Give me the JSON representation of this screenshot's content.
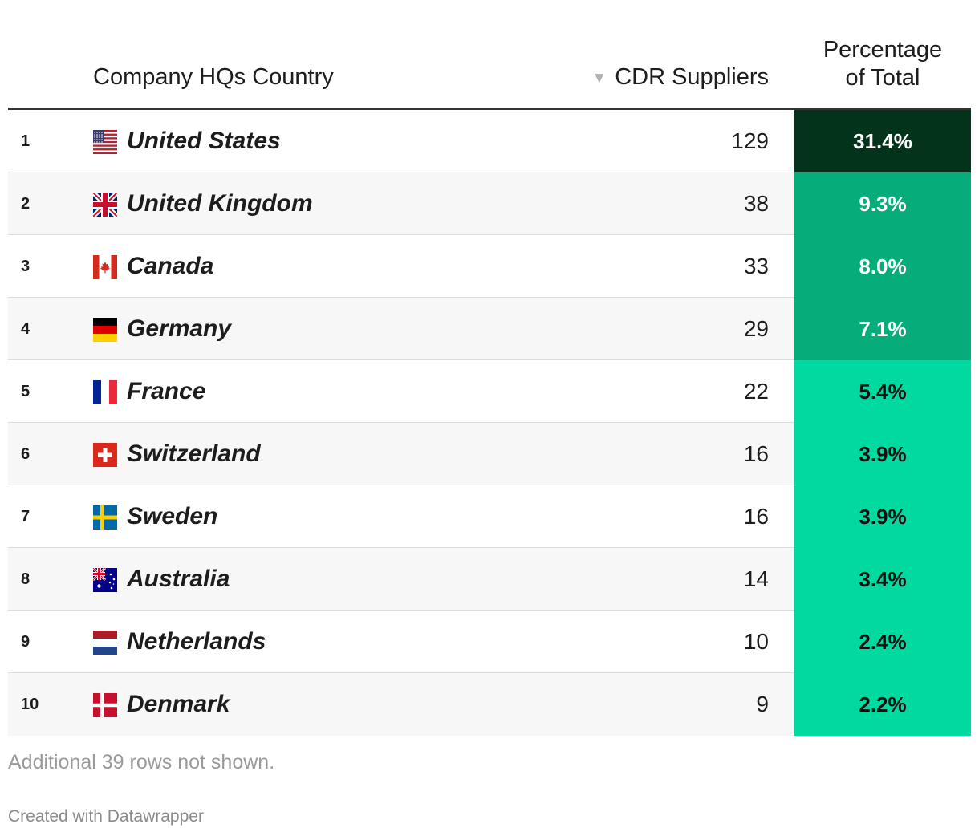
{
  "header": {
    "country_label": "Company HQs Country",
    "suppliers_label": "CDR Suppliers",
    "pct_label_line1": "Percentage",
    "pct_label_line2": "of Total"
  },
  "chart_data": {
    "type": "table",
    "columns": [
      "Company HQs Country",
      "CDR Suppliers",
      "Percentage of Total"
    ],
    "sort": {
      "column": "CDR Suppliers",
      "direction": "descending"
    },
    "rows": [
      {
        "rank": "1",
        "flag": "flag-us-icon",
        "country": "United States",
        "suppliers": "129",
        "percentage": "31.4%",
        "pct_value": 31.4,
        "cell_color": "#03331b",
        "text_color": "#ffffff"
      },
      {
        "rank": "2",
        "flag": "flag-uk-icon",
        "country": "United Kingdom",
        "suppliers": "38",
        "percentage": "9.3%",
        "pct_value": 9.3,
        "cell_color": "#06ad7a",
        "text_color": "#ffffff"
      },
      {
        "rank": "3",
        "flag": "flag-canada-icon",
        "country": "Canada",
        "suppliers": "33",
        "percentage": "8.0%",
        "pct_value": 8.0,
        "cell_color": "#06ad7a",
        "text_color": "#ffffff"
      },
      {
        "rank": "4",
        "flag": "flag-germany-icon",
        "country": "Germany",
        "suppliers": "29",
        "percentage": "7.1%",
        "pct_value": 7.1,
        "cell_color": "#06ad7a",
        "text_color": "#ffffff"
      },
      {
        "rank": "5",
        "flag": "flag-france-icon",
        "country": "France",
        "suppliers": "22",
        "percentage": "5.4%",
        "pct_value": 5.4,
        "cell_color": "#00d9a0",
        "text_color": "#111111"
      },
      {
        "rank": "6",
        "flag": "flag-switzerland-icon",
        "country": "Switzerland",
        "suppliers": "16",
        "percentage": "3.9%",
        "pct_value": 3.9,
        "cell_color": "#00d9a0",
        "text_color": "#111111"
      },
      {
        "rank": "7",
        "flag": "flag-sweden-icon",
        "country": "Sweden",
        "suppliers": "16",
        "percentage": "3.9%",
        "pct_value": 3.9,
        "cell_color": "#00d9a0",
        "text_color": "#111111"
      },
      {
        "rank": "8",
        "flag": "flag-australia-icon",
        "country": "Australia",
        "suppliers": "14",
        "percentage": "3.4%",
        "pct_value": 3.4,
        "cell_color": "#00d9a0",
        "text_color": "#111111"
      },
      {
        "rank": "9",
        "flag": "flag-netherlands-icon",
        "country": "Netherlands",
        "suppliers": "10",
        "percentage": "2.4%",
        "pct_value": 2.4,
        "cell_color": "#00d9a0",
        "text_color": "#111111"
      },
      {
        "rank": "10",
        "flag": "flag-denmark-icon",
        "country": "Denmark",
        "suppliers": "9",
        "percentage": "2.2%",
        "pct_value": 2.2,
        "cell_color": "#00d9a0",
        "text_color": "#111111"
      }
    ]
  },
  "footer": {
    "note": "Additional 39 rows not shown.",
    "credit": "Created with Datawrapper"
  }
}
